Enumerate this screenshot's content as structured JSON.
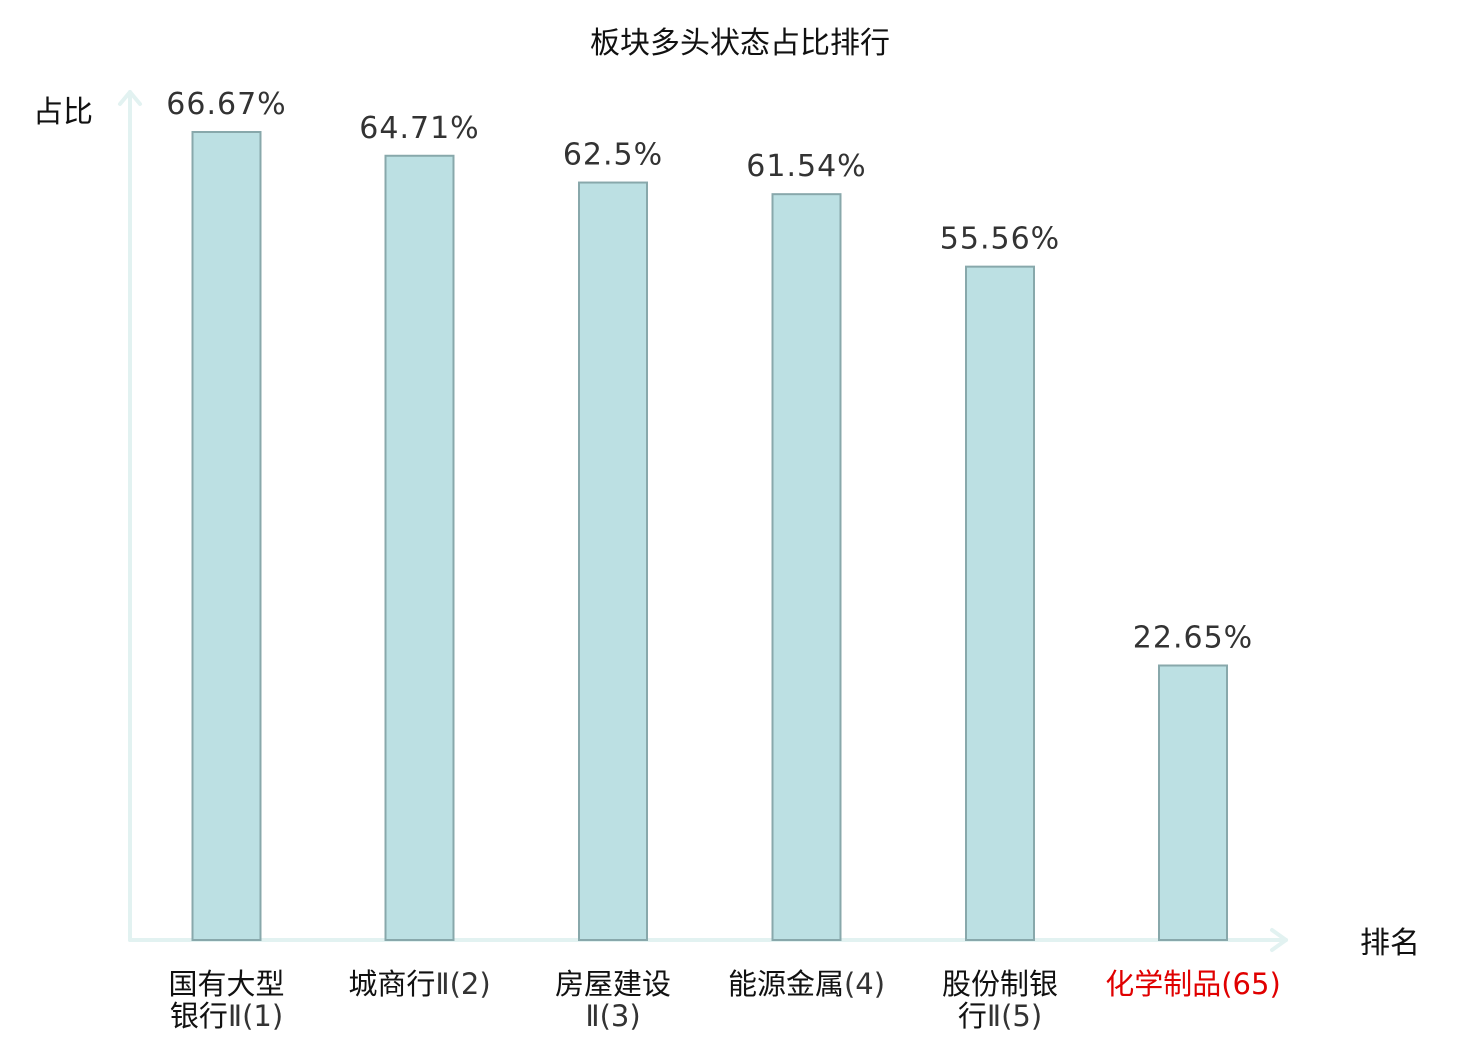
{
  "chart_data": {
    "type": "bar",
    "title": "板块多头状态占比排行",
    "ylabel": "占比",
    "xlabel": "排名",
    "categories": [
      {
        "line1": "国有大型",
        "line2_name": "银行",
        "line2_suffix": "Ⅱ(1)",
        "highlight": false
      },
      {
        "line1_name": "城商行",
        "line1_suffix": "Ⅱ(2)",
        "highlight": false
      },
      {
        "line1": "房屋建设",
        "line2_suffix": "Ⅱ(3)",
        "highlight": false
      },
      {
        "line1_name": "能源金属",
        "line1_suffix": "(4)",
        "highlight": false
      },
      {
        "line1": "股份制银",
        "line2_name": "行",
        "line2_suffix": "Ⅱ(5)",
        "highlight": false
      },
      {
        "line1_name": "化学制品",
        "line1_suffix": "(65)",
        "highlight": true
      }
    ],
    "values": [
      66.67,
      64.71,
      62.5,
      61.54,
      55.56,
      22.65
    ],
    "value_labels": [
      "66.67%",
      "64.71%",
      "62.5%",
      "61.54%",
      "55.56%",
      "22.65%"
    ],
    "ylim": [
      0,
      70
    ],
    "grid": false,
    "legend": "none",
    "colors": {
      "bar_fill": "#bce0e3",
      "bar_stroke": "#88a8ab",
      "axis": "#e2f2f1",
      "highlight": "#e00000"
    }
  }
}
